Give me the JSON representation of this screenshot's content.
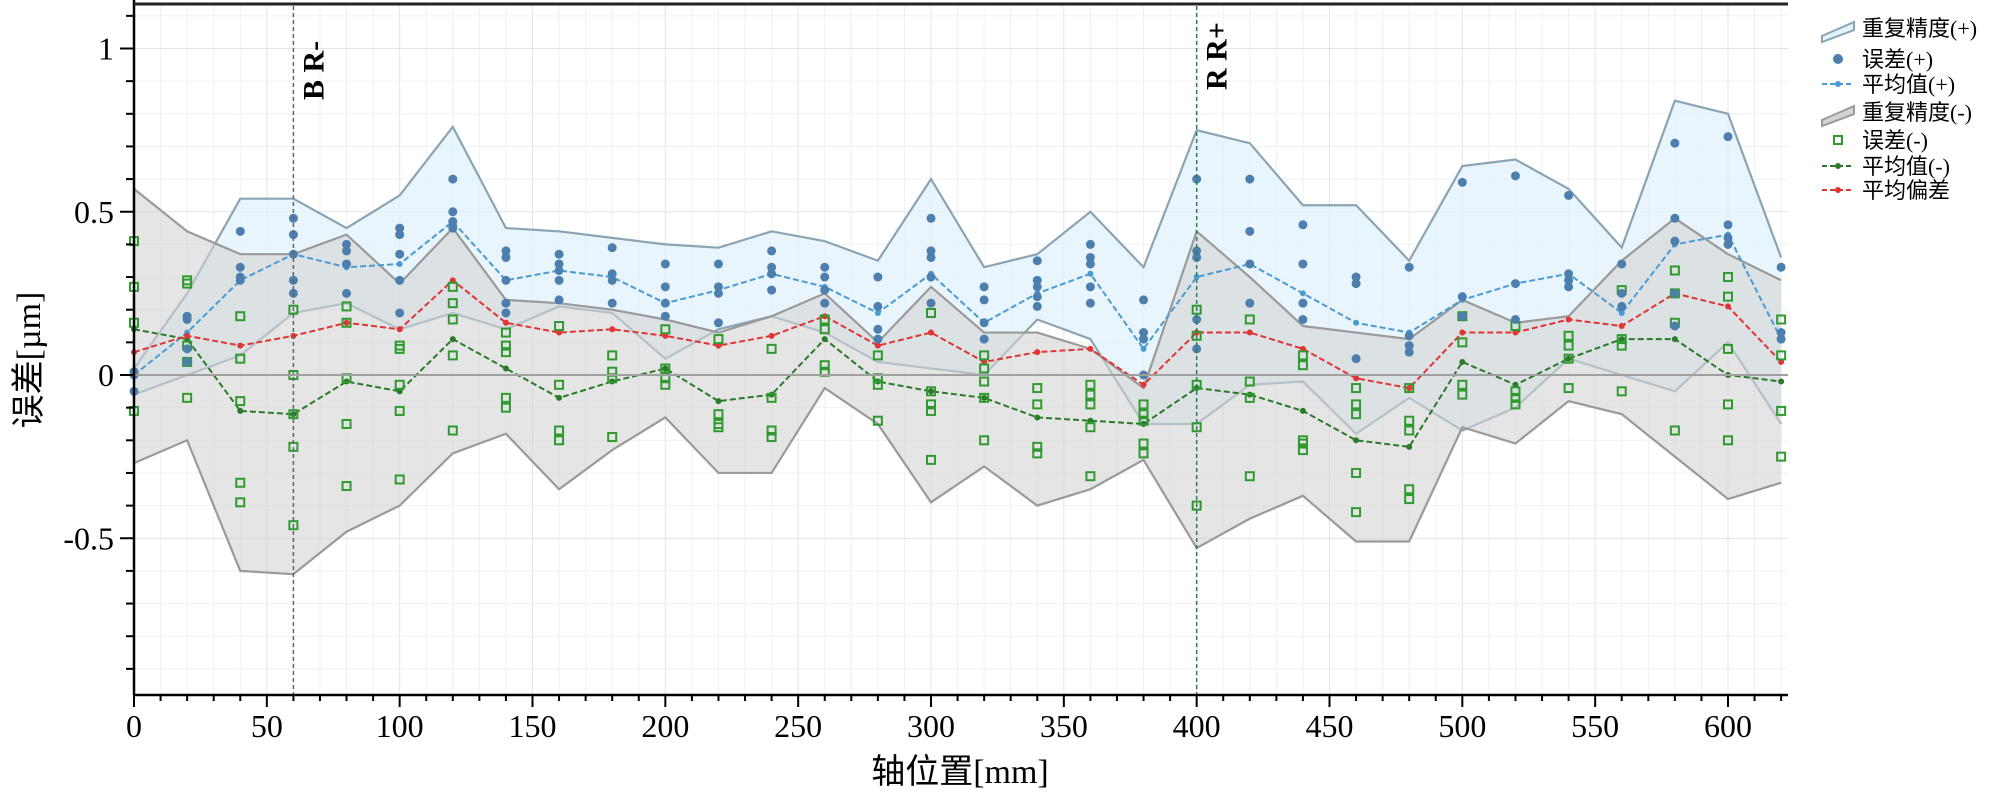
{
  "chart_data": {
    "type": "line",
    "xlabel": "轴位置[mm]",
    "ylabel": "误差[µm]",
    "xlim": [
      0,
      620
    ],
    "ylim": [
      -0.98,
      1.13
    ],
    "grid": true,
    "legend_position": "right",
    "x_ticks": [
      0,
      50,
      100,
      150,
      200,
      250,
      300,
      350,
      400,
      450,
      500,
      550,
      600
    ],
    "x_tick_labels": [
      "0",
      "50",
      "100",
      "150",
      "200",
      "250",
      "300",
      "350",
      "400",
      "450",
      "500",
      "550",
      "600"
    ],
    "y_ticks": [
      1,
      0.5,
      0,
      -0.5
    ],
    "y_tick_labels": [
      "1",
      "0.5",
      "0",
      "-0.5"
    ],
    "markers": [
      {
        "x": 60,
        "label": "B R-"
      },
      {
        "x": 400,
        "label": "R R+"
      }
    ],
    "legend": [
      "重复精度(+)",
      "误差(+)",
      "平均值(+)",
      "重复精度(-)",
      "误差(-)",
      "平均值(-)",
      "平均偏差"
    ],
    "colors": {
      "band_plus_fill": "#e4f3fb",
      "band_plus_stroke": "#8aa4b4",
      "dot_plus": "#4d7fae",
      "mean_plus": "#4a9ad4",
      "band_minus_fill": "#d4d4d4",
      "band_minus_stroke": "#9a9a9a",
      "square_minus": "#2f9a2f",
      "mean_minus": "#2a7a2a",
      "mean_dev": "#e03535"
    },
    "x": [
      0,
      20,
      40,
      60,
      80,
      100,
      120,
      140,
      160,
      180,
      200,
      220,
      240,
      260,
      280,
      300,
      320,
      340,
      360,
      380,
      400,
      420,
      440,
      460,
      480,
      500,
      520,
      540,
      560,
      580,
      600,
      620
    ],
    "series": [
      {
        "name": "重复精度(+) upper",
        "values": [
          0.02,
          0.25,
          0.54,
          0.54,
          0.45,
          0.55,
          0.76,
          0.45,
          0.44,
          0.42,
          0.4,
          0.39,
          0.44,
          0.41,
          0.35,
          0.6,
          0.33,
          0.37,
          0.5,
          0.33,
          0.75,
          0.71,
          0.52,
          0.52,
          0.35,
          0.64,
          0.66,
          0.57,
          0.39,
          0.84,
          0.8,
          0.36
        ]
      },
      {
        "name": "重复精度(+) lower",
        "values": [
          -0.06,
          0.0,
          0.06,
          0.19,
          0.22,
          0.14,
          0.19,
          0.14,
          0.21,
          0.19,
          0.05,
          0.14,
          0.18,
          0.13,
          0.04,
          0.02,
          0.0,
          0.17,
          0.11,
          -0.15,
          -0.15,
          -0.03,
          -0.02,
          -0.18,
          -0.07,
          -0.17,
          -0.1,
          0.05,
          0.0,
          -0.05,
          0.1,
          -0.15
        ]
      },
      {
        "name": "平均值(+)",
        "values": [
          0.0,
          0.13,
          0.29,
          0.37,
          0.33,
          0.34,
          0.47,
          0.29,
          0.32,
          0.3,
          0.22,
          0.26,
          0.31,
          0.27,
          0.19,
          0.31,
          0.16,
          0.25,
          0.31,
          0.08,
          0.3,
          0.34,
          0.25,
          0.16,
          0.13,
          0.23,
          0.28,
          0.31,
          0.19,
          0.4,
          0.43,
          0.11
        ]
      },
      {
        "name": "重复精度(-) upper",
        "values": [
          0.57,
          0.44,
          0.37,
          0.37,
          0.43,
          0.28,
          0.45,
          0.23,
          0.22,
          0.2,
          0.17,
          0.13,
          0.18,
          0.25,
          0.1,
          0.27,
          0.13,
          0.13,
          0.08,
          -0.04,
          0.44,
          0.3,
          0.15,
          0.13,
          0.11,
          0.23,
          0.16,
          0.18,
          0.35,
          0.48,
          0.37,
          0.29
        ]
      },
      {
        "name": "重复精度(-) lower",
        "values": [
          -0.27,
          -0.2,
          -0.6,
          -0.61,
          -0.48,
          -0.4,
          -0.24,
          -0.18,
          -0.35,
          -0.23,
          -0.13,
          -0.3,
          -0.3,
          -0.04,
          -0.15,
          -0.39,
          -0.28,
          -0.4,
          -0.35,
          -0.26,
          -0.53,
          -0.44,
          -0.37,
          -0.51,
          -0.51,
          -0.16,
          -0.21,
          -0.08,
          -0.12,
          -0.25,
          -0.38,
          -0.33
        ]
      },
      {
        "name": "平均值(-)",
        "values": [
          0.14,
          0.11,
          -0.11,
          -0.12,
          -0.02,
          -0.05,
          0.11,
          0.02,
          -0.07,
          -0.02,
          0.02,
          -0.08,
          -0.06,
          0.11,
          -0.02,
          -0.05,
          -0.07,
          -0.13,
          -0.14,
          -0.15,
          -0.04,
          -0.06,
          -0.11,
          -0.2,
          -0.22,
          0.04,
          -0.03,
          0.05,
          0.11,
          0.11,
          0.0,
          -0.02
        ]
      },
      {
        "name": "平均偏差",
        "values": [
          0.07,
          0.12,
          0.09,
          0.12,
          0.16,
          0.14,
          0.29,
          0.16,
          0.13,
          0.14,
          0.12,
          0.09,
          0.12,
          0.18,
          0.09,
          0.13,
          0.04,
          0.07,
          0.08,
          -0.03,
          0.13,
          0.13,
          0.08,
          -0.01,
          -0.04,
          0.13,
          0.13,
          0.17,
          0.15,
          0.25,
          0.21,
          0.04
        ]
      }
    ],
    "errors_plus": [
      [
        0.0,
        -0.05,
        0.01
      ],
      [
        0.18,
        0.17,
        0.08,
        0.04
      ],
      [
        0.44,
        0.33,
        0.3,
        0.29
      ],
      [
        0.48,
        0.43,
        0.37,
        0.29,
        0.25
      ],
      [
        0.4,
        0.38,
        0.34,
        0.25
      ],
      [
        0.45,
        0.43,
        0.37,
        0.29,
        0.19
      ],
      [
        0.6,
        0.5,
        0.45,
        0.47
      ],
      [
        0.38,
        0.36,
        0.29,
        0.22,
        0.19
      ],
      [
        0.37,
        0.34,
        0.32,
        0.29,
        0.23
      ],
      [
        0.39,
        0.31,
        0.29,
        0.22
      ],
      [
        0.34,
        0.27,
        0.22,
        0.18
      ],
      [
        0.34,
        0.27,
        0.25,
        0.16
      ],
      [
        0.38,
        0.33,
        0.31,
        0.26
      ],
      [
        0.33,
        0.3,
        0.26,
        0.22
      ],
      [
        0.3,
        0.21,
        0.14,
        0.11
      ],
      [
        0.48,
        0.38,
        0.36,
        0.3,
        0.22
      ],
      [
        0.27,
        0.23,
        0.16,
        0.11
      ],
      [
        0.35,
        0.29,
        0.27,
        0.24,
        0.21
      ],
      [
        0.4,
        0.36,
        0.34,
        0.27,
        0.22
      ],
      [
        0.23,
        0.13,
        0.11,
        0.0
      ],
      [
        0.6,
        0.38,
        0.36,
        0.17,
        0.08
      ],
      [
        0.6,
        0.44,
        0.34,
        0.22
      ],
      [
        0.46,
        0.34,
        0.22,
        0.17
      ],
      [
        0.3,
        0.28,
        0.05
      ],
      [
        0.33,
        0.12,
        0.09,
        0.07
      ],
      [
        0.59,
        0.24,
        0.18
      ],
      [
        0.61,
        0.28,
        0.17
      ],
      [
        0.55,
        0.31,
        0.29,
        0.27
      ],
      [
        0.34,
        0.25,
        0.21
      ],
      [
        0.71,
        0.48,
        0.41,
        0.25,
        0.15
      ],
      [
        0.73,
        0.46,
        0.42,
        0.4
      ],
      [
        0.33,
        0.13,
        0.11
      ]
    ],
    "errors_minus": [
      [
        0.41,
        0.27,
        0.16,
        -0.11
      ],
      [
        0.29,
        0.28,
        0.09,
        0.04,
        -0.07
      ],
      [
        0.18,
        0.05,
        -0.08,
        -0.33,
        -0.39
      ],
      [
        0.2,
        0.0,
        -0.12,
        -0.22,
        -0.46
      ],
      [
        0.21,
        0.16,
        -0.01,
        -0.15,
        -0.34
      ],
      [
        0.09,
        0.08,
        -0.03,
        -0.11,
        -0.32
      ],
      [
        0.27,
        0.22,
        0.17,
        0.06,
        -0.17
      ],
      [
        0.13,
        0.09,
        0.07,
        -0.07,
        -0.1
      ],
      [
        0.15,
        -0.03,
        -0.17,
        -0.2
      ],
      [
        0.06,
        0.01,
        -0.01,
        -0.19
      ],
      [
        0.14,
        0.02,
        -0.01,
        -0.03
      ],
      [
        0.11,
        -0.12,
        -0.15,
        -0.16
      ],
      [
        0.08,
        -0.07,
        -0.17,
        -0.19
      ],
      [
        0.17,
        0.14,
        0.03,
        0.01
      ],
      [
        0.06,
        -0.01,
        -0.03,
        -0.14
      ],
      [
        0.19,
        -0.05,
        -0.09,
        -0.11,
        -0.26
      ],
      [
        0.06,
        0.02,
        -0.02,
        -0.07,
        -0.2
      ],
      [
        -0.04,
        -0.09,
        -0.22,
        -0.24
      ],
      [
        -0.03,
        -0.06,
        -0.09,
        -0.16,
        -0.31
      ],
      [
        -0.09,
        -0.12,
        -0.14,
        -0.21,
        -0.24
      ],
      [
        0.2,
        0.12,
        -0.03,
        -0.16,
        -0.4
      ],
      [
        0.17,
        -0.02,
        -0.07,
        -0.31
      ],
      [
        0.06,
        0.03,
        -0.2,
        -0.21,
        -0.23
      ],
      [
        -0.04,
        -0.09,
        -0.12,
        -0.3,
        -0.42
      ],
      [
        -0.04,
        -0.14,
        -0.17,
        -0.35,
        -0.38
      ],
      [
        0.18,
        0.1,
        -0.03,
        -0.06
      ],
      [
        0.15,
        -0.05,
        -0.07,
        -0.09
      ],
      [
        0.12,
        0.09,
        0.05,
        -0.04
      ],
      [
        0.26,
        0.11,
        0.09,
        -0.05
      ],
      [
        0.32,
        0.25,
        0.16,
        -0.17
      ],
      [
        0.3,
        0.24,
        0.08,
        -0.09,
        -0.2
      ],
      [
        0.17,
        0.06,
        -0.11,
        -0.25
      ]
    ]
  }
}
